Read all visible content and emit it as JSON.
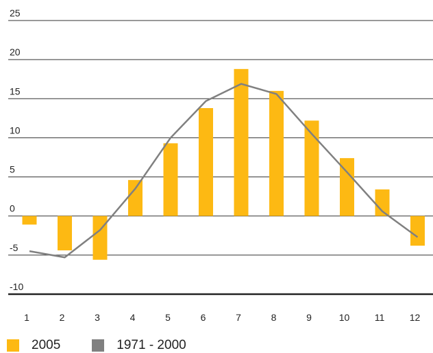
{
  "chart_data": {
    "type": "bar",
    "categories": [
      "1",
      "2",
      "3",
      "4",
      "5",
      "6",
      "7",
      "8",
      "9",
      "10",
      "11",
      "12"
    ],
    "series": [
      {
        "name": "2005",
        "kind": "bar",
        "color": "#FDB913",
        "values": [
          -1.1,
          -4.4,
          -5.6,
          4.6,
          9.3,
          13.8,
          18.8,
          16.0,
          12.2,
          7.4,
          3.4,
          -3.8
        ]
      },
      {
        "name": "1971 - 2000",
        "kind": "line",
        "color": "#808080",
        "values": [
          -4.5,
          -5.3,
          -1.8,
          3.5,
          10.0,
          14.7,
          16.9,
          15.6,
          10.5,
          5.6,
          0.6,
          -2.7
        ]
      }
    ],
    "ylim": [
      -10,
      25
    ],
    "yticks": [
      "25",
      "20",
      "15",
      "10",
      "5",
      "0",
      "-5",
      "-10"
    ],
    "ytick_values": [
      25,
      20,
      15,
      10,
      5,
      0,
      -5,
      -10
    ],
    "grid": true,
    "legend_position": "bottom-left"
  }
}
